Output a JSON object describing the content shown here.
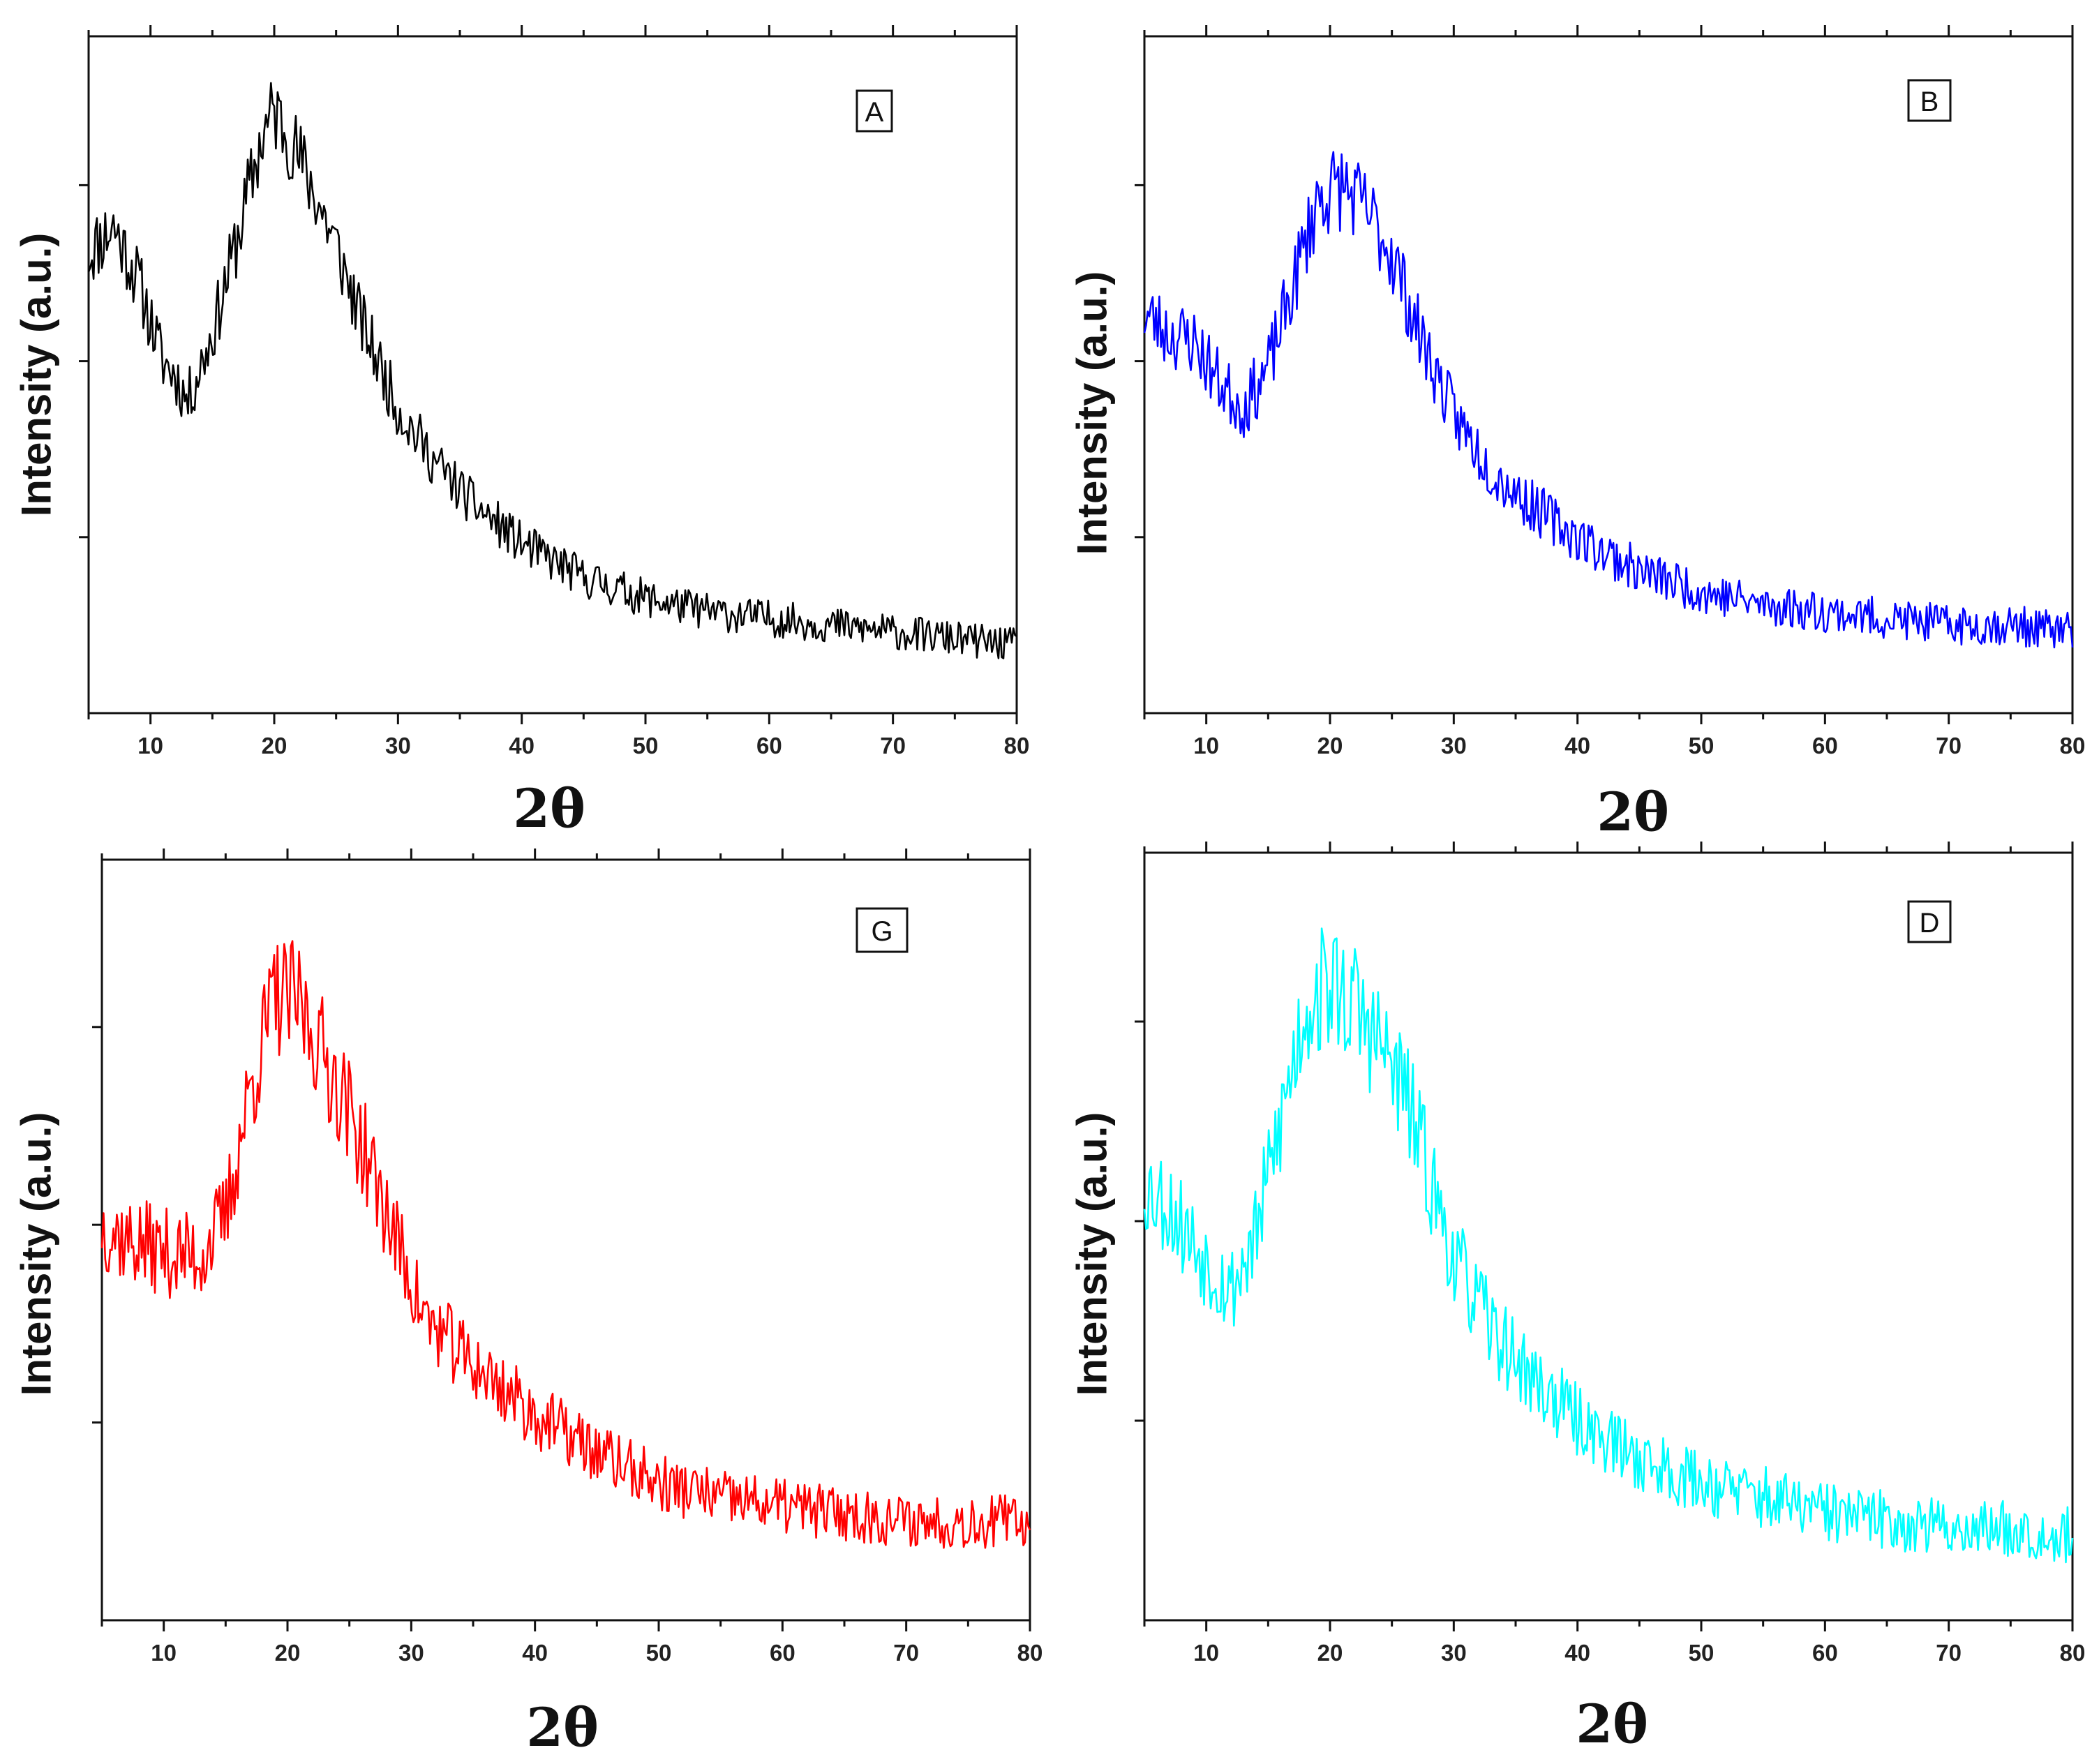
{
  "chart_data": [
    {
      "type": "line",
      "panel_label": "A",
      "xlabel": "2θ",
      "ylabel": "Intensity (a.u.)",
      "xlim": [
        5,
        80
      ],
      "ylim": [
        0,
        100
      ],
      "x_ticks": [
        10,
        20,
        30,
        40,
        50,
        60,
        70,
        80
      ],
      "color": "#000000",
      "noise": 4.5,
      "seed": 11,
      "series": [
        {
          "name": "A",
          "x": [
            5,
            7,
            9,
            11,
            12,
            13,
            15,
            17,
            19,
            20,
            21,
            23,
            25,
            27,
            30,
            33,
            36,
            40,
            45,
            50,
            55,
            60,
            65,
            70,
            75,
            80
          ],
          "values": [
            68,
            72,
            64,
            52,
            50,
            46,
            56,
            70,
            85,
            89,
            86,
            78,
            69,
            58,
            45,
            37,
            31,
            25,
            20,
            17,
            15,
            14,
            13,
            12,
            11,
            10
          ]
        }
      ]
    },
    {
      "type": "line",
      "panel_label": "B",
      "xlabel": "2θ",
      "ylabel": "Intensity (a.u.)",
      "xlim": [
        5,
        80
      ],
      "ylim": [
        0,
        100
      ],
      "x_ticks": [
        10,
        20,
        30,
        40,
        50,
        60,
        70,
        80
      ],
      "color": "#0000ff",
      "noise": 5,
      "seed": 23,
      "series": [
        {
          "name": "B",
          "x": [
            5,
            7,
            9,
            11,
            13,
            15,
            17,
            19,
            21,
            23,
            25,
            27,
            30,
            33,
            36,
            40,
            45,
            50,
            55,
            60,
            65,
            70,
            75,
            80
          ],
          "values": [
            59,
            56,
            55,
            49,
            45,
            51,
            63,
            76,
            78,
            74,
            68,
            57,
            44,
            36,
            31,
            26,
            21,
            18,
            16,
            15,
            14,
            13,
            13,
            12
          ]
        }
      ]
    },
    {
      "type": "line",
      "panel_label": "G",
      "xlabel": "2θ",
      "ylabel": "Intensity (a.u.)",
      "xlim": [
        5,
        80
      ],
      "ylim": [
        0,
        100
      ],
      "x_ticks": [
        10,
        20,
        30,
        40,
        50,
        60,
        70,
        80
      ],
      "color": "#ff0000",
      "noise": 6,
      "seed": 37,
      "series": [
        {
          "name": "G",
          "x": [
            5,
            7,
            9,
            11,
            13,
            15,
            17,
            19,
            21,
            23,
            25,
            27,
            29,
            31,
            34,
            37,
            40,
            45,
            50,
            55,
            60,
            65,
            70,
            75,
            80
          ],
          "values": [
            52,
            50,
            49,
            48,
            48,
            53,
            70,
            82,
            81,
            74,
            67,
            58,
            49,
            40,
            35,
            31,
            27,
            22,
            18,
            16,
            15,
            14,
            13,
            13,
            13
          ]
        }
      ]
    },
    {
      "type": "line",
      "panel_label": "D",
      "xlabel": "2θ",
      "ylabel": "Intensity (a.u.)",
      "xlim": [
        5,
        80
      ],
      "ylim": [
        0,
        100
      ],
      "x_ticks": [
        10,
        20,
        30,
        40,
        50,
        60,
        70,
        80
      ],
      "color": "#00ffff",
      "noise": 6.5,
      "seed": 53,
      "series": [
        {
          "name": "D",
          "x": [
            5,
            7,
            9,
            11,
            12,
            14,
            16,
            18,
            20,
            22,
            24,
            26,
            28,
            30,
            33,
            36,
            40,
            45,
            50,
            55,
            60,
            65,
            70,
            75,
            80
          ],
          "values": [
            57,
            54,
            49,
            45,
            43,
            50,
            65,
            80,
            83,
            80,
            75,
            69,
            58,
            47,
            38,
            32,
            26,
            21,
            18,
            16,
            14,
            13,
            12,
            12,
            11
          ]
        }
      ]
    }
  ]
}
